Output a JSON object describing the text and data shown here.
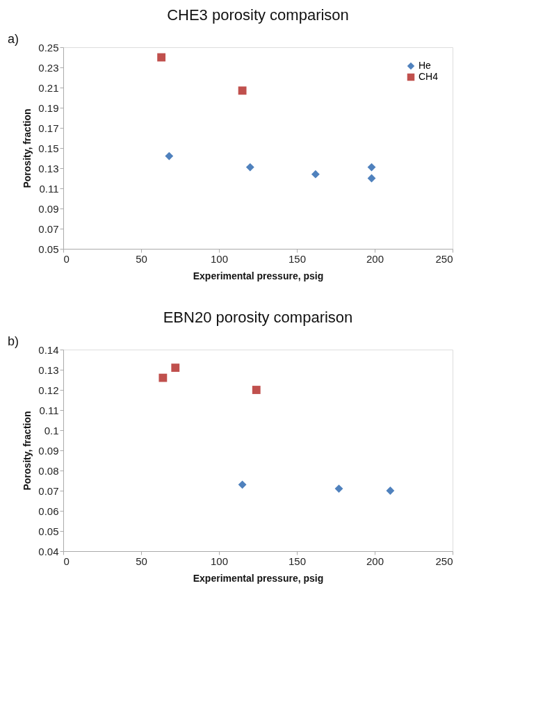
{
  "chart_data": [
    {
      "type": "scatter",
      "title": "CHE3 porosity comparison",
      "xlabel": "Experimental pressure, psig",
      "ylabel": "Porosity, fraction",
      "annotations": [
        "a)"
      ],
      "xlim": [
        0,
        250
      ],
      "xticks": [
        0,
        50,
        100,
        150,
        200,
        250
      ],
      "ylim": [
        0.05,
        0.25
      ],
      "yticks": [
        0.05,
        0.07,
        0.09,
        0.11,
        0.13,
        0.15,
        0.17,
        0.19,
        0.21,
        0.23,
        0.25
      ],
      "grid": false,
      "legend": "right",
      "series": [
        {
          "name": "He",
          "color": "#4f81bd",
          "marker": "diamond",
          "x": [
            68,
            120,
            162,
            198,
            198
          ],
          "values": [
            0.142,
            0.131,
            0.124,
            0.131,
            0.12
          ]
        },
        {
          "name": "CH4",
          "color": "#c0504d",
          "marker": "square",
          "x": [
            63,
            115
          ],
          "values": [
            0.24,
            0.207
          ]
        }
      ]
    },
    {
      "type": "scatter",
      "title": "EBN20 porosity comparison",
      "xlabel": "Experimental pressure, psig",
      "ylabel": "Porosity, fraction",
      "annotations": [
        "b)"
      ],
      "xlim": [
        0,
        250
      ],
      "xticks": [
        0,
        50,
        100,
        150,
        200,
        250
      ],
      "ylim": [
        0.04,
        0.14
      ],
      "yticks": [
        0.04,
        0.05,
        0.06,
        0.07,
        0.08,
        0.09,
        0.1,
        0.11,
        0.12,
        0.13,
        0.14
      ],
      "grid": false,
      "legend": "right",
      "series": [
        {
          "name": "He",
          "color": "#4f81bd",
          "marker": "diamond",
          "x": [
            115,
            177,
            210
          ],
          "values": [
            0.073,
            0.071,
            0.07
          ]
        },
        {
          "name": "CH4",
          "color": "#c0504d",
          "marker": "square",
          "x": [
            64,
            72,
            124
          ],
          "values": [
            0.126,
            0.131,
            0.12
          ]
        }
      ]
    }
  ]
}
